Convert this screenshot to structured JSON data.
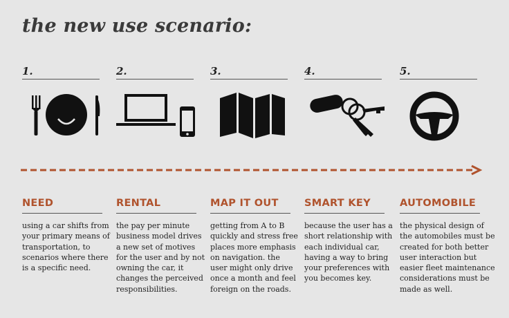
{
  "title": "the new use scenario:",
  "accent_color": "#b0532d",
  "steps": [
    {
      "number": "1.",
      "icon": "plate-fork-knife-icon",
      "heading": "NEED",
      "text": "using a car shifts from your primary means of transportation, to scenarios where there is a specific need."
    },
    {
      "number": "2.",
      "icon": "laptop-phone-icon",
      "heading": "RENTAL",
      "text": "the pay per minute business model drives a new set of motives for the user and by not owning the car, it changes the perceived responsibilities."
    },
    {
      "number": "3.",
      "icon": "map-icon",
      "heading": "MAP IT OUT",
      "text": "getting from A to B quickly and stress free places more emphasis on navigation. the user might only drive once a month and feel foreign on the roads."
    },
    {
      "number": "4.",
      "icon": "keys-icon",
      "heading": "SMART KEY",
      "text": "because the user has a short relationship with each individual car, having a way to bring your preferences with you becomes key."
    },
    {
      "number": "5.",
      "icon": "steering-wheel-icon",
      "heading": "AUTOMOBILE",
      "text": "the physical design of the automobiles must be created for both better user interaction but easier fleet maintenance considerations must be made as well."
    }
  ]
}
